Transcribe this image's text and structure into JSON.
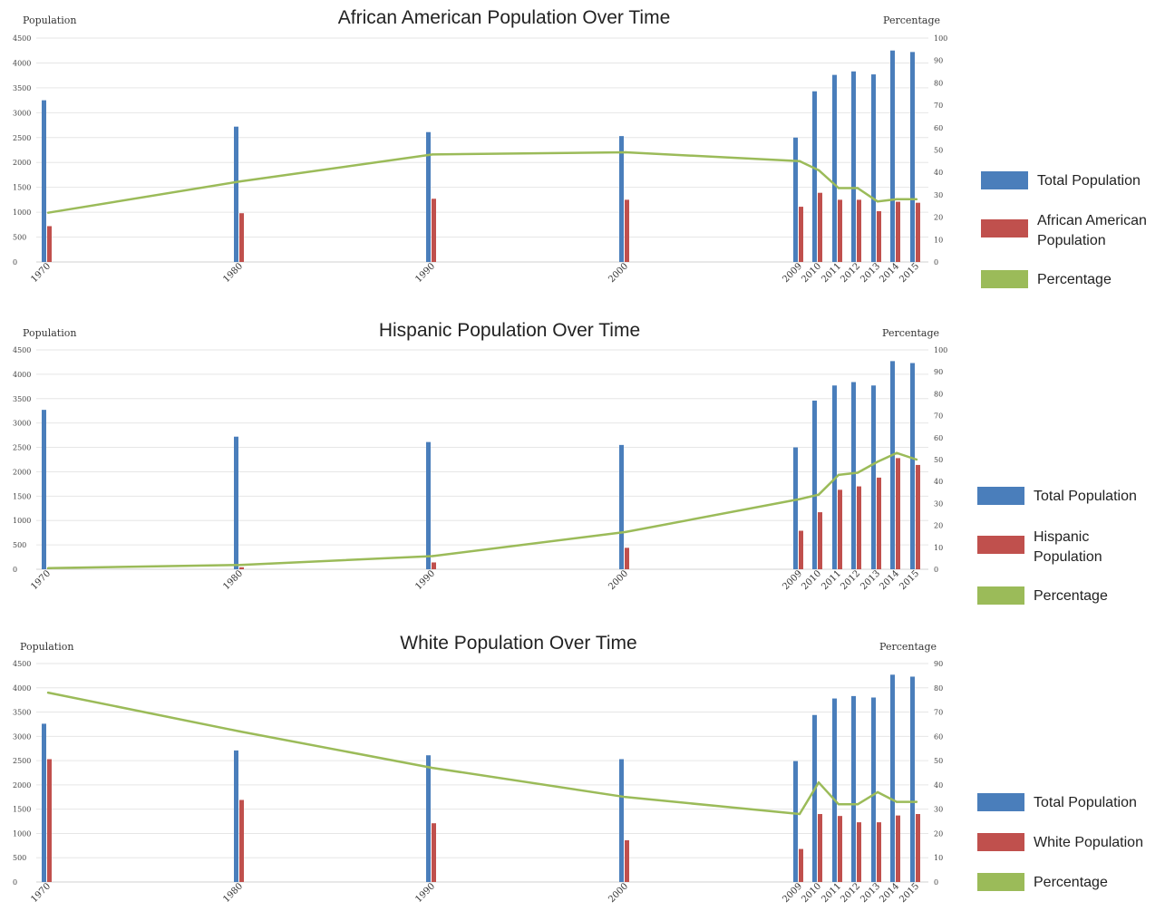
{
  "chart_data": [
    {
      "type": "bar",
      "title": "African American Population Over Time",
      "ylabel": "Population",
      "y2label": "Percentage",
      "ylim": [
        0,
        4500
      ],
      "y2lim": [
        0,
        100
      ],
      "yticks": [
        "4500",
        "4000",
        "3500",
        "3000",
        "2500",
        "2000",
        "1500",
        "1000",
        "500",
        "0"
      ],
      "y2ticks": [
        "100",
        "90",
        "80",
        "70",
        "60",
        "50",
        "40",
        "30",
        "20",
        "10",
        "0"
      ],
      "x": [
        1970,
        1980,
        1990,
        2000,
        2009,
        2010,
        2011,
        2012,
        2013,
        2014,
        2015
      ],
      "xlabels": [
        "1970",
        "1980",
        "1990",
        "2000",
        "2009",
        "2010",
        "2011",
        "2012",
        "2013",
        "2014",
        "2015"
      ],
      "grid": true,
      "legend_position": "right",
      "series": [
        {
          "name": "Total Population",
          "kind": "bar",
          "axis": "left",
          "color": "#4a7ebb",
          "values": [
            3250,
            2720,
            2610,
            2530,
            2500,
            3430,
            3760,
            3830,
            3770,
            4250,
            4220
          ]
        },
        {
          "name": "African American Population",
          "kind": "bar",
          "axis": "left",
          "color": "#c0504d",
          "values": [
            720,
            980,
            1270,
            1250,
            1110,
            1390,
            1250,
            1250,
            1020,
            1210,
            1190
          ]
        },
        {
          "name": "Percentage",
          "kind": "line",
          "axis": "right",
          "color": "#9bbb59",
          "values": [
            22,
            36,
            48,
            49,
            45,
            41,
            33,
            33,
            27,
            28,
            28
          ]
        }
      ],
      "legend": [
        "Total Population",
        "African American Population",
        "Percentage"
      ]
    },
    {
      "type": "bar",
      "title": "Hispanic Population Over Time",
      "ylabel": "Population",
      "y2label": "Percentage",
      "ylim": [
        0,
        4500
      ],
      "y2lim": [
        0,
        100
      ],
      "yticks": [
        "4500",
        "4000",
        "3500",
        "3000",
        "2500",
        "2000",
        "1500",
        "1000",
        "500",
        "0"
      ],
      "y2ticks": [
        "100",
        "90",
        "80",
        "70",
        "60",
        "50",
        "40",
        "30",
        "20",
        "10",
        "0"
      ],
      "x": [
        1970,
        1980,
        1990,
        2000,
        2009,
        2010,
        2011,
        2012,
        2013,
        2014,
        2015
      ],
      "xlabels": [
        "1970",
        "1980",
        "1990",
        "2000",
        "2009",
        "2010",
        "2011",
        "2012",
        "2013",
        "2014",
        "2015"
      ],
      "grid": true,
      "legend_position": "right",
      "series": [
        {
          "name": "Total Population",
          "kind": "bar",
          "axis": "left",
          "color": "#4a7ebb",
          "values": [
            3270,
            2720,
            2610,
            2550,
            2500,
            3460,
            3770,
            3840,
            3770,
            4270,
            4230
          ]
        },
        {
          "name": "Hispanic Population",
          "kind": "bar",
          "axis": "left",
          "color": "#c0504d",
          "values": [
            10,
            40,
            140,
            440,
            790,
            1170,
            1630,
            1700,
            1880,
            2280,
            2140
          ]
        },
        {
          "name": "Percentage",
          "kind": "line",
          "axis": "right",
          "color": "#9bbb59",
          "values": [
            0.5,
            2,
            6,
            17,
            32,
            34,
            43,
            44,
            49,
            53,
            50
          ]
        }
      ],
      "legend": [
        "Total Population",
        "Hispanic Population",
        "Percentage"
      ]
    },
    {
      "type": "bar",
      "title": "White Population Over Time",
      "ylabel": "Population",
      "y2label": "Percentage",
      "ylim": [
        0,
        4500
      ],
      "y2lim": [
        0,
        90
      ],
      "yticks": [
        "4500",
        "4000",
        "3500",
        "3000",
        "2500",
        "2000",
        "1500",
        "1000",
        "500",
        "0"
      ],
      "y2ticks": [
        "90",
        "80",
        "70",
        "60",
        "50",
        "40",
        "30",
        "20",
        "10",
        "0"
      ],
      "x": [
        1970,
        1980,
        1990,
        2000,
        2009,
        2010,
        2011,
        2012,
        2013,
        2014,
        2015
      ],
      "xlabels": [
        "1970",
        "1980",
        "1990",
        "2000",
        "2009",
        "2010",
        "2011",
        "2012",
        "2013",
        "2014",
        "2015"
      ],
      "grid": true,
      "legend_position": "right",
      "series": [
        {
          "name": "Total Population",
          "kind": "bar",
          "axis": "left",
          "color": "#4a7ebb",
          "values": [
            3260,
            2710,
            2610,
            2530,
            2490,
            3440,
            3780,
            3830,
            3800,
            4270,
            4230
          ]
        },
        {
          "name": "White Population",
          "kind": "bar",
          "axis": "left",
          "color": "#c0504d",
          "values": [
            2530,
            1690,
            1210,
            860,
            680,
            1400,
            1360,
            1230,
            1230,
            1370,
            1400
          ]
        },
        {
          "name": "Percentage",
          "kind": "line",
          "axis": "right",
          "color": "#9bbb59",
          "values": [
            78,
            62,
            47,
            35,
            28,
            41,
            32,
            32,
            37,
            33,
            33
          ]
        }
      ],
      "legend": [
        "Total Population",
        "White Population",
        "Percentage"
      ]
    }
  ]
}
